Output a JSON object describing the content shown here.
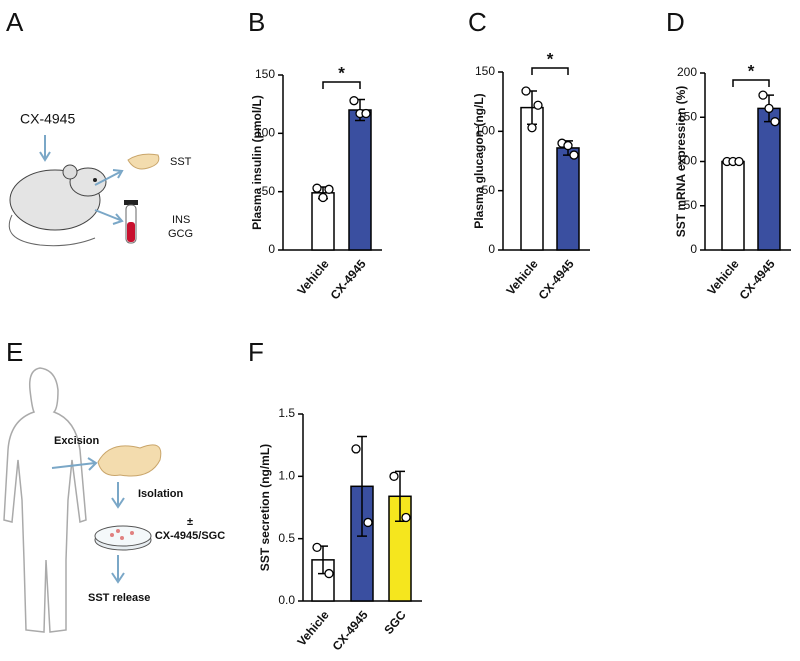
{
  "panel_labels": [
    "A",
    "B",
    "C",
    "D",
    "E",
    "F"
  ],
  "schematic_a": {
    "treatment": "CX-4945",
    "organ": "SST",
    "blood_line1": "INS",
    "blood_line2": "GCG"
  },
  "schematic_e": {
    "step1": "Excision",
    "step2": "Isolation",
    "plusminus": "±",
    "treatment": "CX-4945/SGC",
    "step3": "SST release"
  },
  "chart_data": [
    {
      "type": "bar",
      "ylabel": "Plasma insulin (pmol/L)",
      "categories": [
        "Vehicle",
        "CX-4945"
      ],
      "values": [
        49,
        120
      ],
      "errors": [
        5,
        9
      ],
      "points": [
        [
          53,
          45,
          52
        ],
        [
          128,
          117,
          117
        ]
      ],
      "colors": [
        "#ffffff",
        "#3a4fa0"
      ],
      "ylim": [
        0,
        150
      ],
      "yticks": [
        0,
        50,
        100,
        150
      ],
      "annotation": "*"
    },
    {
      "type": "bar",
      "ylabel": "Plasma glucagon (ng/L)",
      "categories": [
        "Vehicle",
        "CX-4945"
      ],
      "values": [
        120,
        86
      ],
      "errors": [
        14,
        6
      ],
      "points": [
        [
          134,
          103,
          122
        ],
        [
          90,
          88,
          80
        ]
      ],
      "colors": [
        "#ffffff",
        "#3a4fa0"
      ],
      "ylim": [
        0,
        150
      ],
      "yticks": [
        0,
        50,
        100,
        150
      ],
      "annotation": "*"
    },
    {
      "type": "bar",
      "ylabel": "SST mRNA expression (%)",
      "categories": [
        "Vehicle",
        "CX-4945"
      ],
      "values": [
        100,
        160
      ],
      "errors": [
        0,
        15
      ],
      "points": [
        [
          100,
          100,
          100
        ],
        [
          175,
          160,
          145
        ]
      ],
      "colors": [
        "#ffffff",
        "#3a4fa0"
      ],
      "ylim": [
        0,
        200
      ],
      "yticks": [
        0,
        50,
        100,
        150,
        200
      ],
      "annotation": "*"
    },
    {
      "type": "bar",
      "ylabel": "SST secretion (ng/mL)",
      "categories": [
        "Vehicle",
        "CX-4945",
        "SGC"
      ],
      "values": [
        0.33,
        0.92,
        0.84
      ],
      "errors": [
        0.11,
        0.4,
        0.2
      ],
      "points": [
        [
          0.43,
          0.22
        ],
        [
          1.22,
          0.63
        ],
        [
          1.0,
          0.67
        ]
      ],
      "colors": [
        "#ffffff",
        "#3a4fa0",
        "#f5e61e"
      ],
      "ylim": [
        0,
        1.5
      ],
      "yticks": [
        {
          "value": 0,
          "label": "0.0"
        },
        0.5,
        {
          "value": 1,
          "label": "1.0"
        },
        1.5
      ]
    }
  ]
}
